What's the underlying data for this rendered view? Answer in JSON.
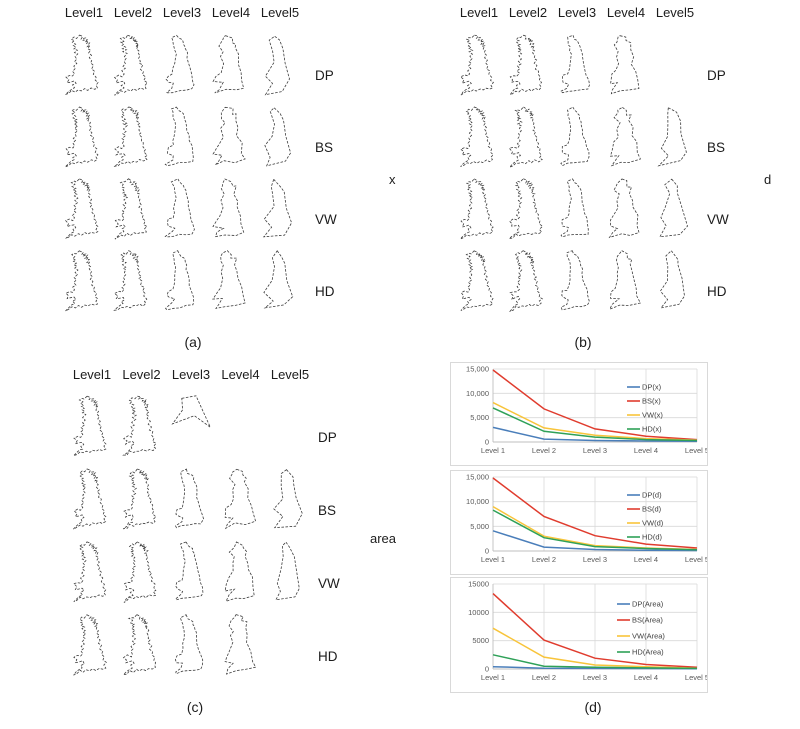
{
  "figure": {
    "col_headers": [
      "Level1",
      "Level2",
      "Level3",
      "Level4",
      "Level5"
    ],
    "captions": {
      "a": "(a)",
      "b": "(b)",
      "c": "(c)",
      "d": "(d)"
    },
    "side_labels": {
      "a": "x",
      "b": "d",
      "c": "area"
    },
    "panels": [
      {
        "id": "a",
        "rows": [
          {
            "label": "DP",
            "cells": [
              1,
              2,
              3,
              4,
              5
            ]
          },
          {
            "label": "BS",
            "cells": [
              1,
              2,
              3,
              4,
              5
            ]
          },
          {
            "label": "VW",
            "cells": [
              1,
              2,
              3,
              4,
              5
            ]
          },
          {
            "label": "HD",
            "cells": [
              1,
              2,
              3,
              4,
              5
            ]
          }
        ]
      },
      {
        "id": "b",
        "rows": [
          {
            "label": "DP",
            "cells": [
              1,
              2,
              3,
              4,
              null
            ]
          },
          {
            "label": "BS",
            "cells": [
              1,
              2,
              3,
              4,
              5
            ]
          },
          {
            "label": "VW",
            "cells": [
              1,
              2,
              3,
              4,
              5
            ]
          },
          {
            "label": "HD",
            "cells": [
              1,
              2,
              3,
              4,
              5
            ]
          }
        ]
      },
      {
        "id": "c",
        "rows": [
          {
            "label": "DP",
            "cells": [
              1,
              2,
              "dart",
              null,
              null
            ]
          },
          {
            "label": "BS",
            "cells": [
              1,
              2,
              3,
              4,
              5
            ]
          },
          {
            "label": "VW",
            "cells": [
              1,
              2,
              3,
              4,
              5
            ]
          },
          {
            "label": "HD",
            "cells": [
              1,
              2,
              3,
              4,
              null
            ]
          }
        ]
      }
    ]
  },
  "coastline": {
    "stroke_color": "#3c3c3c",
    "base_points": [
      [
        38,
        3
      ],
      [
        47,
        6
      ],
      [
        43,
        11
      ],
      [
        53,
        9
      ],
      [
        49,
        15
      ],
      [
        58,
        13
      ],
      [
        53,
        19
      ],
      [
        61,
        17
      ],
      [
        56,
        24
      ],
      [
        63,
        22
      ],
      [
        58,
        30
      ],
      [
        64,
        28
      ],
      [
        60,
        36
      ],
      [
        66,
        40
      ],
      [
        62,
        46
      ],
      [
        68,
        52
      ],
      [
        64,
        58
      ],
      [
        70,
        64
      ],
      [
        66,
        70
      ],
      [
        73,
        76
      ],
      [
        70,
        84
      ],
      [
        77,
        90
      ],
      [
        74,
        98
      ],
      [
        81,
        104
      ],
      [
        78,
        112
      ],
      [
        85,
        118
      ],
      [
        80,
        124
      ],
      [
        84,
        130
      ],
      [
        76,
        134
      ],
      [
        68,
        131
      ],
      [
        60,
        136
      ],
      [
        52,
        133
      ],
      [
        44,
        138
      ],
      [
        36,
        135
      ],
      [
        28,
        140
      ],
      [
        20,
        137
      ],
      [
        12,
        144
      ],
      [
        4,
        147
      ],
      [
        10,
        140
      ],
      [
        18,
        134
      ],
      [
        26,
        130
      ],
      [
        22,
        124
      ],
      [
        30,
        120
      ],
      [
        26,
        114
      ],
      [
        16,
        116
      ],
      [
        8,
        118
      ],
      [
        12,
        110
      ],
      [
        5,
        104
      ],
      [
        14,
        100
      ],
      [
        22,
        102
      ],
      [
        27,
        96
      ],
      [
        22,
        90
      ],
      [
        29,
        84
      ],
      [
        24,
        78
      ],
      [
        31,
        72
      ],
      [
        26,
        66
      ],
      [
        33,
        60
      ],
      [
        27,
        54
      ],
      [
        34,
        48
      ],
      [
        26,
        44
      ],
      [
        33,
        40
      ],
      [
        25,
        36
      ],
      [
        31,
        32
      ],
      [
        23,
        28
      ],
      [
        29,
        24
      ],
      [
        21,
        20
      ],
      [
        27,
        16
      ],
      [
        19,
        12
      ],
      [
        25,
        8
      ],
      [
        31,
        10
      ]
    ],
    "dart_points": [
      [
        28,
        8
      ],
      [
        62,
        2
      ],
      [
        96,
        78
      ],
      [
        58,
        50
      ],
      [
        6,
        70
      ],
      [
        30,
        36
      ]
    ]
  },
  "chart_data": [
    {
      "type": "line",
      "categories": [
        "Level 1",
        "Level 2",
        "Level 3",
        "Level 4",
        "Level 5"
      ],
      "ylim": [
        0,
        15000
      ],
      "yticks": [
        0,
        5000,
        10000,
        15000
      ],
      "ytick_labels": [
        "0",
        "5,000",
        "10,000",
        "15,000"
      ],
      "grid": true,
      "legend_position": "right-inside",
      "series": [
        {
          "name": "DP(x)",
          "color": "#4a7eba",
          "values": [
            3000,
            600,
            300,
            200,
            150
          ]
        },
        {
          "name": "BS(x)",
          "color": "#e03c2e",
          "values": [
            14800,
            6800,
            2700,
            1200,
            500
          ]
        },
        {
          "name": "VW(x)",
          "color": "#f8c43a",
          "values": [
            8100,
            2900,
            1400,
            700,
            400
          ]
        },
        {
          "name": "HD(x)",
          "color": "#2fa158",
          "values": [
            7000,
            2200,
            1000,
            500,
            300
          ]
        }
      ]
    },
    {
      "type": "line",
      "categories": [
        "Level 1",
        "Level 2",
        "Level 3",
        "Level 4",
        "Level 5"
      ],
      "ylim": [
        0,
        15000
      ],
      "yticks": [
        0,
        5000,
        10000,
        15000
      ],
      "ytick_labels": [
        "0",
        "5,000",
        "10,000",
        "15,000"
      ],
      "grid": true,
      "legend_position": "right-inside",
      "series": [
        {
          "name": "DP(d)",
          "color": "#4a7eba",
          "values": [
            4100,
            800,
            300,
            150,
            100
          ]
        },
        {
          "name": "BS(d)",
          "color": "#e03c2e",
          "values": [
            14800,
            7000,
            3100,
            1400,
            600
          ]
        },
        {
          "name": "VW(d)",
          "color": "#f8c43a",
          "values": [
            9000,
            3000,
            1100,
            600,
            300
          ]
        },
        {
          "name": "HD(d)",
          "color": "#2fa158",
          "values": [
            8300,
            2700,
            900,
            500,
            250
          ]
        }
      ]
    },
    {
      "type": "line",
      "categories": [
        "Level 1",
        "Level 2",
        "Level 3",
        "Level 4",
        "Level 5"
      ],
      "ylim": [
        0,
        15000
      ],
      "yticks": [
        0,
        5000,
        10000,
        15000
      ],
      "ytick_labels": [
        "0",
        "5000",
        "10000",
        "15000"
      ],
      "grid": true,
      "legend_position": "right-inside",
      "series": [
        {
          "name": "DP(Area)",
          "color": "#4a7eba",
          "values": [
            400,
            150,
            100,
            80,
            50
          ]
        },
        {
          "name": "BS(Area)",
          "color": "#e03c2e",
          "values": [
            13300,
            5100,
            1900,
            800,
            300
          ]
        },
        {
          "name": "VW(Area)",
          "color": "#f8c43a",
          "values": [
            7200,
            2100,
            700,
            400,
            150
          ]
        },
        {
          "name": "HD(Area)",
          "color": "#2fa158",
          "values": [
            2500,
            500,
            300,
            200,
            100
          ]
        }
      ]
    }
  ]
}
